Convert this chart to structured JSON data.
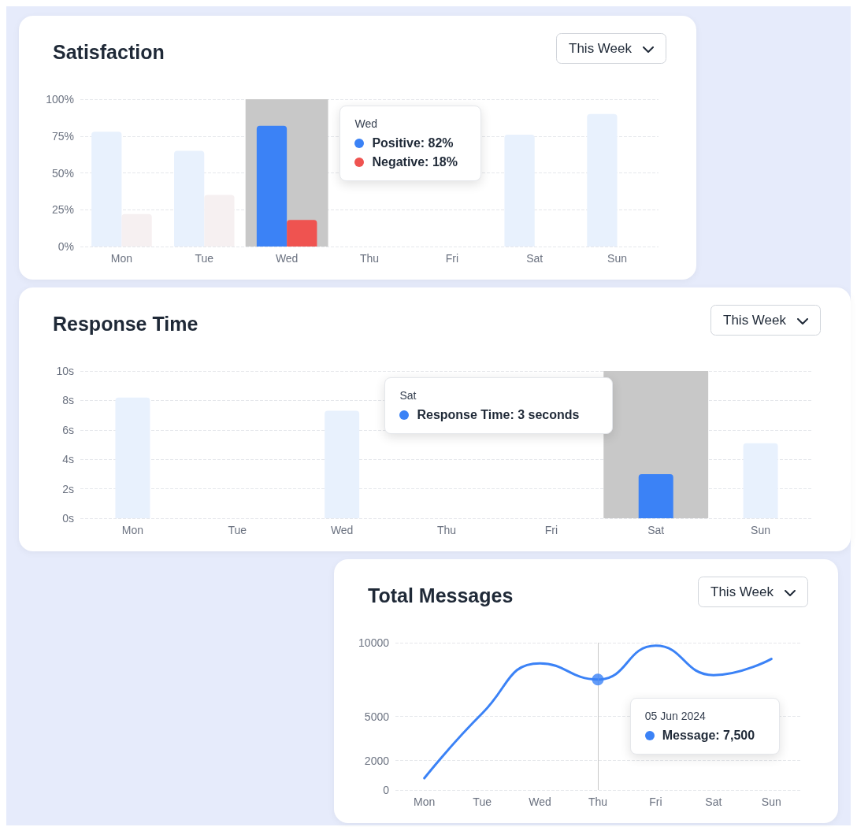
{
  "chart_data": [
    {
      "type": "bar",
      "title": "Satisfaction",
      "subtitle": "This Week",
      "categories": [
        "Mon",
        "Tue",
        "Wed",
        "Thu",
        "Fri",
        "Sat",
        "Sun"
      ],
      "series": [
        {
          "values": [
            78,
            65,
            82,
            null,
            null,
            76,
            90
          ],
          "colors": [
            "#e8f1fd",
            "#e8f1fd",
            "#3b82f6",
            "#e8f1fd",
            "#e8f1fd",
            "#e8f1fd",
            "#e8f1fd"
          ]
        },
        {
          "values": [
            22,
            35,
            18,
            null,
            null,
            null,
            null
          ],
          "colors": [
            "#f6f0f1",
            "#f6f0f1",
            "#ef5350",
            "#f6f0f1",
            "#f6f0f1",
            "#f6f0f1",
            "#f6f0f1"
          ]
        }
      ],
      "ylim": [
        0,
        100
      ],
      "yticks": [
        {
          "value": 0,
          "label": "0%"
        },
        {
          "value": 25,
          "label": "25%"
        },
        {
          "value": 50,
          "label": "50%"
        },
        {
          "value": 75,
          "label": "75%"
        },
        {
          "value": 100,
          "label": "100%"
        }
      ],
      "grid": "y",
      "bands": [
        {
          "axis": "x",
          "from": "Wed",
          "to": "Wed",
          "color": "#c8c8c8"
        }
      ],
      "annotations": [
        "Wed",
        "Positive: 82%",
        "Negative: 18%"
      ]
    },
    {
      "type": "bar",
      "title": "Response Time",
      "subtitle": "This Week",
      "categories": [
        "Mon",
        "Tue",
        "Wed",
        "Thu",
        "Fri",
        "Sat",
        "Sun"
      ],
      "values": [
        8.2,
        null,
        7.3,
        null,
        null,
        3,
        5.1
      ],
      "colors": [
        "#e8f1fd",
        "#e8f1fd",
        "#e8f1fd",
        "#e8f1fd",
        "#e8f1fd",
        "#3b82f6",
        "#e8f1fd"
      ],
      "ylim": [
        0,
        10
      ],
      "yticks": [
        {
          "value": 0,
          "label": "0s"
        },
        {
          "value": 2,
          "label": "2s"
        },
        {
          "value": 4,
          "label": "4s"
        },
        {
          "value": 6,
          "label": "6s"
        },
        {
          "value": 8,
          "label": "8s"
        },
        {
          "value": 10,
          "label": "10s"
        }
      ],
      "grid": "y",
      "bands": [
        {
          "axis": "x",
          "from": "Sat",
          "to": "Sat",
          "color": "#c8c8c8"
        }
      ],
      "annotations": [
        "Sat",
        "Response Time: 3 seconds"
      ]
    },
    {
      "type": "line",
      "title": "Total Messages",
      "subtitle": "This Week",
      "categories": [
        "Mon",
        "Tue",
        "Wed",
        "Thu",
        "Fri",
        "Sat",
        "Sun"
      ],
      "series": [
        {
          "color": "#3b82f6",
          "values": [
            800,
            5200,
            8600,
            7500,
            9800,
            7800,
            8900
          ]
        },
        {
          "type": "scatter",
          "color": "#3b82f6",
          "x": [
            "Thu"
          ],
          "values": [
            7500
          ]
        }
      ],
      "ylim": [
        0,
        10000
      ],
      "yticks": [
        0,
        2000,
        5000,
        10000
      ],
      "grid": "y",
      "line_style": "solid",
      "ref_lines": [
        {
          "axis": "x",
          "value": "Thu",
          "color": "#c8c8c8"
        }
      ],
      "annotations": [
        "05 Jun 2024",
        "Message: 7,500"
      ]
    }
  ]
}
